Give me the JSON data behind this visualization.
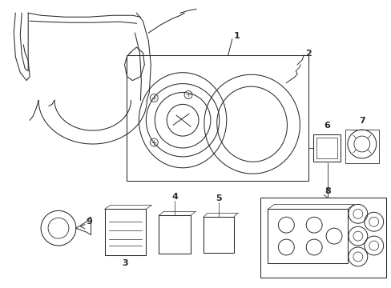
{
  "bg_color": "#ffffff",
  "line_color": "#2a2a2a",
  "lw": 0.75,
  "fig_w": 4.89,
  "fig_h": 3.6,
  "dpi": 100
}
